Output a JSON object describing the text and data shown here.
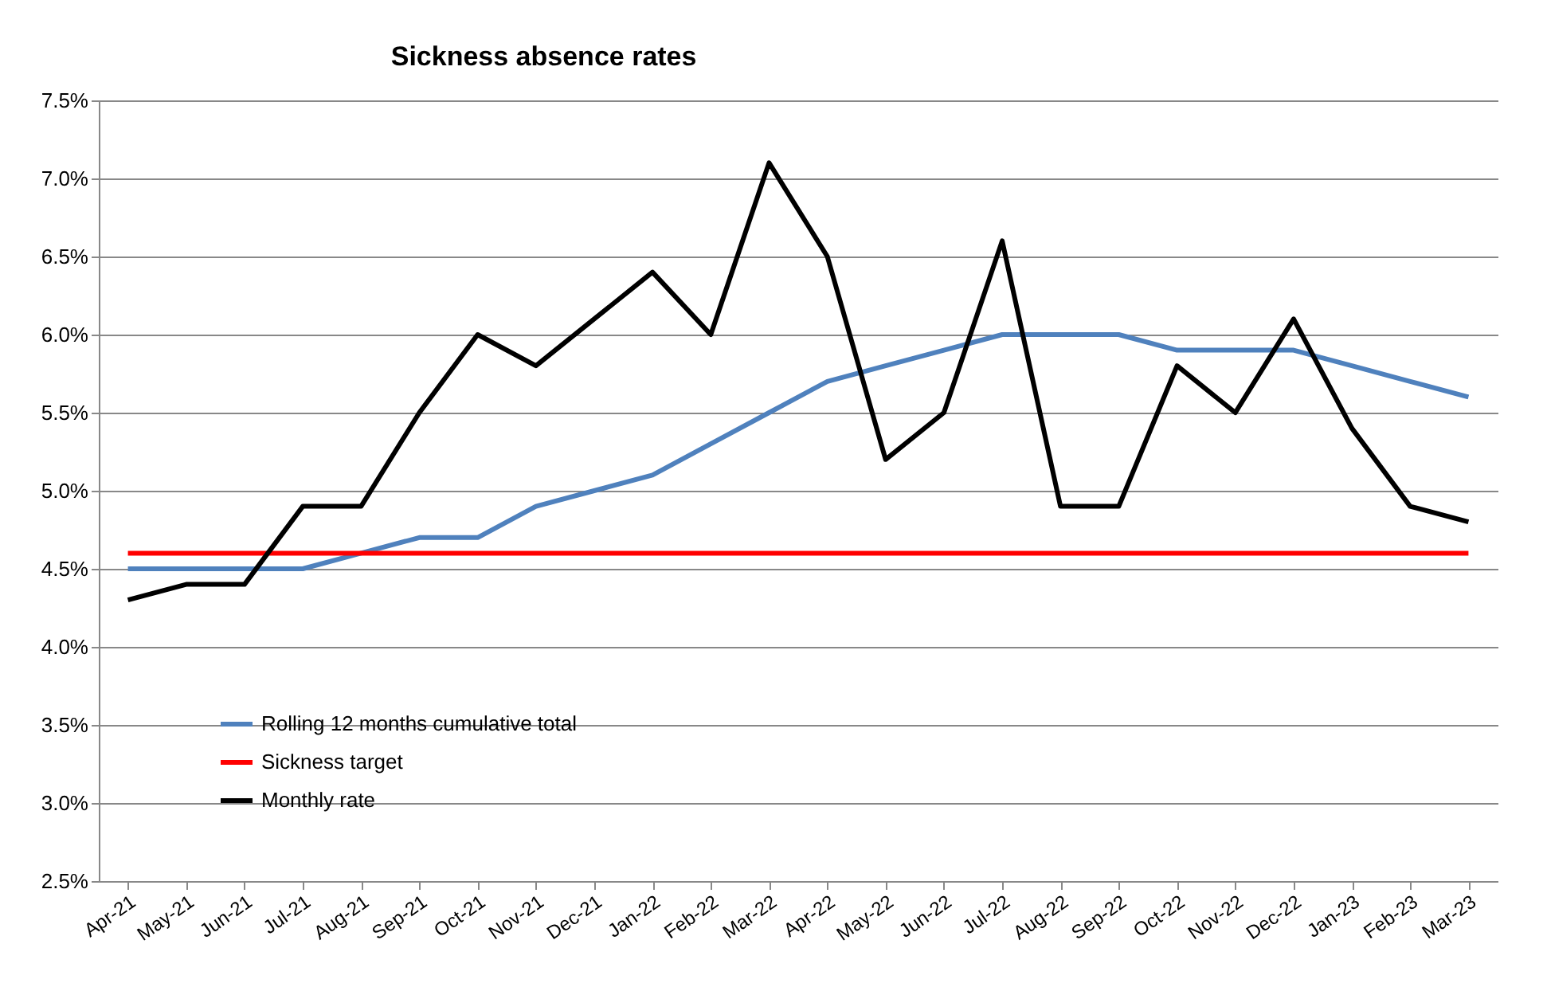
{
  "chart_data": {
    "type": "line",
    "title": "Sickness absence rates",
    "categories": [
      "Apr-21",
      "May-21",
      "Jun-21",
      "Jul-21",
      "Aug-21",
      "Sep-21",
      "Oct-21",
      "Nov-21",
      "Dec-21",
      "Jan-22",
      "Feb-22",
      "Mar-22",
      "Apr-22",
      "May-22",
      "Jun-22",
      "Jul-22",
      "Aug-22",
      "Sep-22",
      "Oct-22",
      "Nov-22",
      "Dec-22",
      "Jan-23",
      "Feb-23",
      "Mar-23"
    ],
    "series": [
      {
        "name": "Rolling 12 months cumulative total",
        "color": "#4f81bd",
        "values": [
          4.5,
          4.5,
          4.5,
          4.5,
          4.6,
          4.7,
          4.7,
          4.9,
          5.0,
          5.1,
          5.3,
          5.5,
          5.7,
          5.8,
          5.9,
          6.0,
          6.0,
          6.0,
          5.9,
          5.9,
          5.9,
          5.8,
          5.7,
          5.6
        ]
      },
      {
        "name": "Sickness target",
        "color": "#ff0000",
        "values": [
          4.6,
          4.6,
          4.6,
          4.6,
          4.6,
          4.6,
          4.6,
          4.6,
          4.6,
          4.6,
          4.6,
          4.6,
          4.6,
          4.6,
          4.6,
          4.6,
          4.6,
          4.6,
          4.6,
          4.6,
          4.6,
          4.6,
          4.6,
          4.6
        ]
      },
      {
        "name": "Monthly rate",
        "color": "#000000",
        "values": [
          4.3,
          4.4,
          4.4,
          4.9,
          4.9,
          5.5,
          6.0,
          5.8,
          6.1,
          6.4,
          6.0,
          7.1,
          6.5,
          5.2,
          5.5,
          6.6,
          4.9,
          4.9,
          5.8,
          5.5,
          6.1,
          5.4,
          4.9,
          4.8
        ]
      }
    ],
    "ylim": [
      2.5,
      7.5
    ],
    "yticks": [
      {
        "value": 2.5,
        "label": "2.5%"
      },
      {
        "value": 3.0,
        "label": "3.0%"
      },
      {
        "value": 3.5,
        "label": "3.5%"
      },
      {
        "value": 4.0,
        "label": "4.0%"
      },
      {
        "value": 4.5,
        "label": "4.5%"
      },
      {
        "value": 5.0,
        "label": "5.0%"
      },
      {
        "value": 5.5,
        "label": "5.5%"
      },
      {
        "value": 6.0,
        "label": "6.0%"
      },
      {
        "value": 6.5,
        "label": "6.5%"
      },
      {
        "value": 7.0,
        "label": "7.0%"
      },
      {
        "value": 7.5,
        "label": "7.5%"
      }
    ],
    "grid": "y",
    "legend": "bottom left",
    "marker": "none",
    "line_style": "solid"
  }
}
